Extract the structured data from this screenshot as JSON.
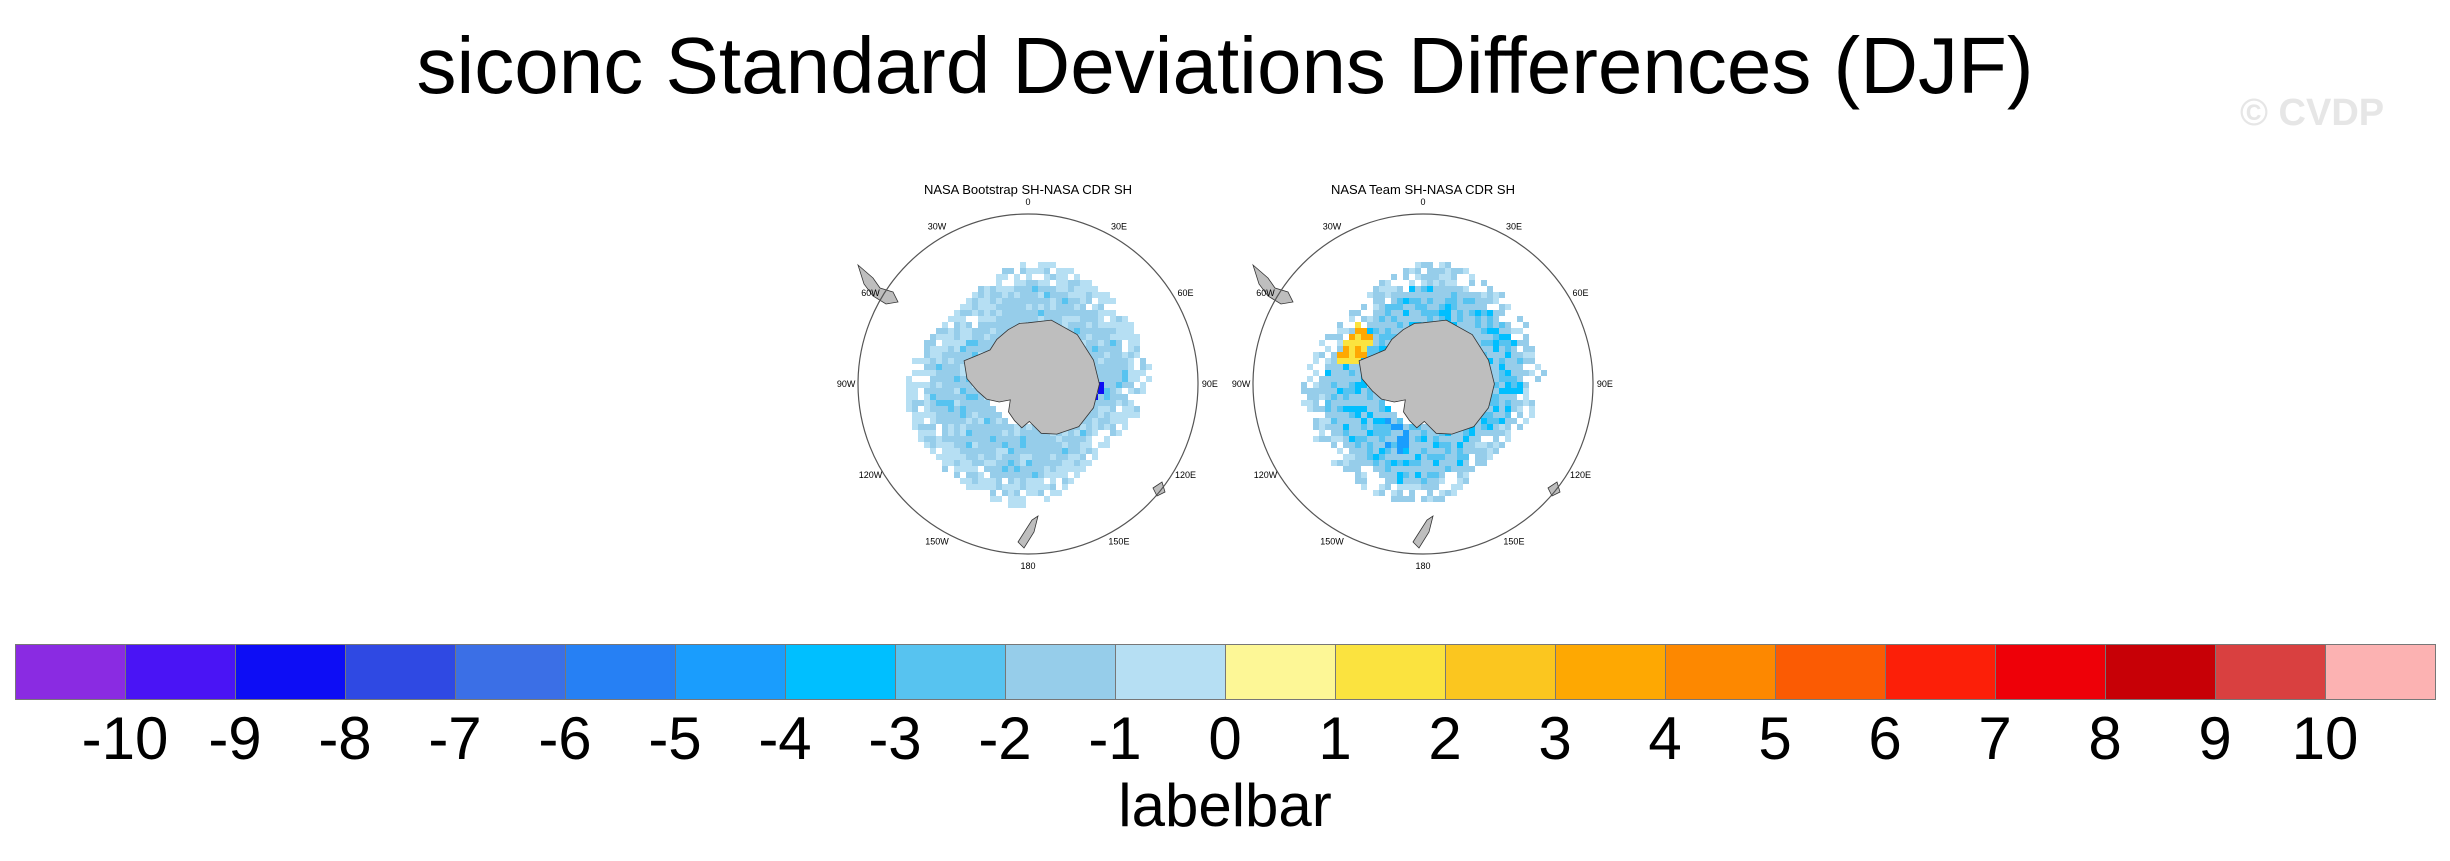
{
  "title": "siconc Standard Deviations Differences (DJF)",
  "watermark": "© CVDP",
  "chart_data": [
    {
      "type": "heatmap",
      "projection": "polar-stereographic-south",
      "title": "NASA Bootstrap SH-NASA CDR SH",
      "lon_labels": [
        "0",
        "30E",
        "60E",
        "90E",
        "120E",
        "150E",
        "180",
        "150W",
        "120W",
        "90W",
        "60W",
        "30W"
      ],
      "dominant_values": [
        -1,
        0,
        -2,
        -8
      ],
      "land_color": "#bebebe"
    },
    {
      "type": "heatmap",
      "projection": "polar-stereographic-south",
      "title": "NASA Team SH-NASA CDR SH",
      "lon_labels": [
        "0",
        "30E",
        "60E",
        "90E",
        "120E",
        "150E",
        "180",
        "150W",
        "120W",
        "90W",
        "60W",
        "30W"
      ],
      "dominant_values": [
        -1,
        -2,
        -3,
        2,
        4
      ],
      "land_color": "#bebebe"
    }
  ],
  "labelbar": {
    "title": "labelbar",
    "tick_labels": [
      "-10",
      "-9",
      "-8",
      "-7",
      "-6",
      "-5",
      "-4",
      "-3",
      "-2",
      "-1",
      "0",
      "1",
      "2",
      "3",
      "4",
      "5",
      "6",
      "7",
      "8",
      "9",
      "10"
    ],
    "colors": [
      "#8a2be2",
      "#4a14f5",
      "#0d0df5",
      "#2f49e3",
      "#3b6fe6",
      "#2680f4",
      "#1a9dfd",
      "#00bfff",
      "#57c3f0",
      "#96cdea",
      "#b6dff3",
      "#fdf796",
      "#fbe33f",
      "#fbc61f",
      "#fea802",
      "#fd8800",
      "#fb5b03",
      "#fc1f08",
      "#ee0008",
      "#c70006",
      "#d94040",
      "#fcb2b2"
    ]
  }
}
